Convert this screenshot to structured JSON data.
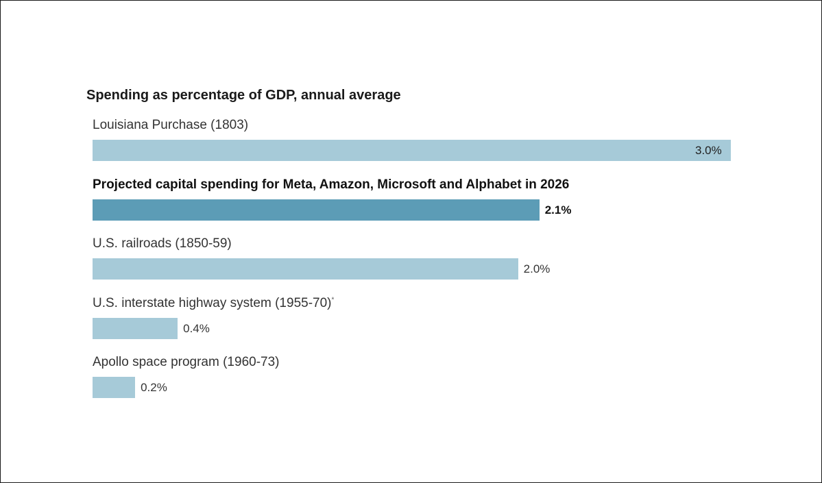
{
  "chart_data": {
    "type": "bar",
    "orientation": "horizontal",
    "title": "Spending as percentage of GDP, annual average",
    "categories": [
      "Louisiana Purchase (1803)",
      "Projected capital spending for Meta, Amazon, Microsoft and Alphabet in 2026",
      "U.S. railroads (1850-59)",
      "U.S. interstate highway system (1955-70)",
      "Apollo space program (1960-73)"
    ],
    "values": [
      3.0,
      2.1,
      2.0,
      0.4,
      0.2
    ],
    "value_labels": [
      "3.0%",
      "2.1%",
      "2.0%",
      "0.4%",
      "0.2%"
    ],
    "footnote_marks": [
      "",
      "",
      "",
      "*",
      ""
    ],
    "highlighted_index": 1,
    "xlim": [
      0,
      3.0
    ],
    "grid": false,
    "colors": {
      "bar": "#a6cad8",
      "highlight": "#5c9cb6"
    }
  }
}
